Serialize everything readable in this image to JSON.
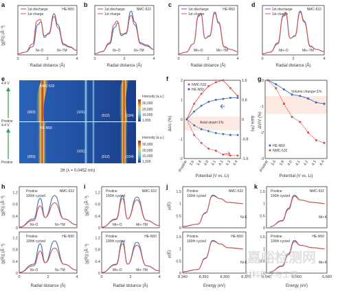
{
  "panels": {
    "a": {
      "letter": "a",
      "tag": "HE-N50",
      "leg1": "1st discharge",
      "leg2": "1st charge",
      "peak1": "Ni–O",
      "peak2": "Ni–TM",
      "xlabel": "Radial distance (Å)",
      "ylabel": "|χ(R)| (Å⁻³)"
    },
    "b": {
      "letter": "b",
      "tag": "NMC-532",
      "leg1": "1st discharge",
      "leg2": "1st charge",
      "peak1": "Ni–O",
      "peak2": "Ni–TM",
      "xlabel": "Radial distance (Å)"
    },
    "c": {
      "letter": "c",
      "tag": "HE-N50",
      "leg1": "1st discharge",
      "leg2": "1st charge",
      "peak1": "Mn–O",
      "peak2": "Mn–TM",
      "xlabel": "Radial distance (Å)"
    },
    "d": {
      "letter": "d",
      "tag": "NMC-532",
      "leg1": "1st discharge",
      "leg2": "1st charge",
      "peak1": "Mn–O",
      "peak2": "Mn–TM",
      "xlabel": "Radial distance (Å)"
    },
    "e": {
      "letter": "e",
      "top_tag": "NMC-532",
      "bot_tag": "HE-N50",
      "volt_top": "4.4 V",
      "volt_bot": "4.4 V",
      "pristine_top": "Pristine",
      "pristine_bot": "Pristine",
      "peaks": [
        "(003)",
        "(101)",
        "(012)",
        "(104)"
      ],
      "cb_title": "Intensity (a.u.)",
      "cb_ticks": [
        "30,000",
        "20,000",
        "10,000",
        "1,000"
      ],
      "xlabel": "2θ (λ = 0.0452 nm)"
    },
    "f": {
      "letter": "f",
      "leg1": "NMC-532",
      "leg2": "HE-N50",
      "ylabel_l": "Δc/c (%)",
      "ylabel_r": "Δa/a (%)",
      "note": "Axial strain≈1%",
      "xlabel": "Potential (V vs. Li)"
    },
    "g": {
      "letter": "g",
      "leg1": "HE-N50",
      "leg2": "NMC-532",
      "ylabel": "ΔV/V (%)",
      "note": "Volume change≈1%",
      "xlabel": "Potential (V vs. Li)"
    },
    "h": {
      "letter": "h",
      "tag_top": "NMC-532",
      "tag_bot": "HE-N50",
      "leg1": "Pristine",
      "leg2": "100th cycled",
      "peak1": "Ni–O",
      "peak2": "Ni–TM",
      "ylabel": "|χ(R)| (Å⁻³)",
      "xlabel": "Radial distance (Å)"
    },
    "i": {
      "letter": "i",
      "tag_top": "NMC-532",
      "tag_bot": "HE-N50",
      "leg1": "Pristine",
      "leg2": "100th cycled",
      "peak1": "Mn–O",
      "peak2": "Mn–TM",
      "ylabel": "|χ(R)| (Å⁻³)",
      "xlabel": "Radial distance (Å)"
    },
    "j": {
      "letter": "j",
      "tag_top": "NMC-532",
      "tag_bot": "HE-N50",
      "leg1": "Pristine",
      "leg2": "100th cycled",
      "edge": "Ni-K",
      "ylabel": "μ(E)",
      "xlabel": "Energy (eV)"
    },
    "k": {
      "letter": "k",
      "tag_top": "NMC-532",
      "tag_bot": "HE-N50",
      "leg1": "Pristine",
      "leg2": "100th cycled",
      "edge": "Mn-K",
      "xlabel": "Energy (eV)"
    }
  },
  "watermark": {
    "line1": "嘉峪检测网",
    "line2": "材料科学与工程"
  },
  "colors": {
    "blue": "#3a6fb0",
    "red": "#d9534f",
    "heat_bg": "#1a3f8c"
  },
  "chart_data": [
    {
      "panel": "a",
      "type": "line",
      "xlim": [
        0,
        4
      ],
      "x_ticks": [
        0,
        2,
        4
      ],
      "series": [
        {
          "name": "1st discharge",
          "values": [
            [
              0,
              0.02
            ],
            [
              0.5,
              0.05
            ],
            [
              1,
              0.15
            ],
            [
              1.35,
              0.55
            ],
            [
              1.55,
              0.6
            ],
            [
              1.8,
              0.32
            ],
            [
              2.1,
              0.4
            ],
            [
              2.45,
              0.75
            ],
            [
              2.7,
              0.55
            ],
            [
              3.1,
              0.2
            ],
            [
              3.5,
              0.15
            ],
            [
              4,
              0.08
            ]
          ]
        },
        {
          "name": "1st charge",
          "values": [
            [
              0,
              0.02
            ],
            [
              0.5,
              0.05
            ],
            [
              1,
              0.2
            ],
            [
              1.3,
              0.62
            ],
            [
              1.5,
              0.65
            ],
            [
              1.8,
              0.35
            ],
            [
              2.1,
              0.38
            ],
            [
              2.45,
              0.7
            ],
            [
              2.7,
              0.5
            ],
            [
              3.1,
              0.18
            ],
            [
              3.5,
              0.14
            ],
            [
              4,
              0.08
            ]
          ]
        }
      ]
    },
    {
      "panel": "b",
      "type": "line",
      "xlim": [
        0,
        4
      ],
      "x_ticks": [
        0,
        2,
        4
      ],
      "series": [
        {
          "name": "1st discharge",
          "values": [
            [
              0,
              0.02
            ],
            [
              0.5,
              0.06
            ],
            [
              1,
              0.2
            ],
            [
              1.35,
              0.5
            ],
            [
              1.55,
              0.58
            ],
            [
              1.8,
              0.35
            ],
            [
              2.1,
              0.4
            ],
            [
              2.45,
              0.8
            ],
            [
              2.7,
              0.6
            ],
            [
              3.1,
              0.22
            ],
            [
              3.5,
              0.18
            ],
            [
              4,
              0.1
            ]
          ]
        },
        {
          "name": "1st charge",
          "values": [
            [
              0,
              0.02
            ],
            [
              0.5,
              0.06
            ],
            [
              1,
              0.22
            ],
            [
              1.3,
              0.55
            ],
            [
              1.5,
              0.62
            ],
            [
              1.8,
              0.38
            ],
            [
              2.1,
              0.38
            ],
            [
              2.45,
              0.72
            ],
            [
              2.7,
              0.55
            ],
            [
              3.1,
              0.2
            ],
            [
              3.5,
              0.16
            ],
            [
              4,
              0.1
            ]
          ]
        }
      ]
    },
    {
      "panel": "c",
      "type": "line",
      "xlim": [
        0,
        4
      ],
      "x_ticks": [
        0,
        2,
        4
      ],
      "series": [
        {
          "name": "1st discharge",
          "values": [
            [
              0,
              0.02
            ],
            [
              0.5,
              0.05
            ],
            [
              1,
              0.2
            ],
            [
              1.35,
              0.7
            ],
            [
              1.5,
              0.75
            ],
            [
              1.8,
              0.3
            ],
            [
              2.1,
              0.35
            ],
            [
              2.45,
              0.78
            ],
            [
              2.7,
              0.6
            ],
            [
              3.1,
              0.15
            ],
            [
              3.5,
              0.1
            ],
            [
              4,
              0.06
            ]
          ]
        },
        {
          "name": "1st charge",
          "values": [
            [
              0,
              0.02
            ],
            [
              0.5,
              0.05
            ],
            [
              1,
              0.2
            ],
            [
              1.35,
              0.72
            ],
            [
              1.5,
              0.76
            ],
            [
              1.8,
              0.3
            ],
            [
              2.1,
              0.34
            ],
            [
              2.45,
              0.76
            ],
            [
              2.7,
              0.58
            ],
            [
              3.1,
              0.14
            ],
            [
              3.5,
              0.1
            ],
            [
              4,
              0.06
            ]
          ]
        }
      ]
    },
    {
      "panel": "d",
      "type": "line",
      "xlim": [
        0,
        4
      ],
      "x_ticks": [
        0,
        2,
        4
      ],
      "series": [
        {
          "name": "1st discharge",
          "values": [
            [
              0,
              0.02
            ],
            [
              0.5,
              0.05
            ],
            [
              1,
              0.2
            ],
            [
              1.35,
              0.7
            ],
            [
              1.5,
              0.76
            ],
            [
              1.8,
              0.3
            ],
            [
              2.1,
              0.35
            ],
            [
              2.45,
              0.8
            ],
            [
              2.7,
              0.62
            ],
            [
              3.1,
              0.16
            ],
            [
              3.5,
              0.1
            ],
            [
              4,
              0.06
            ]
          ]
        },
        {
          "name": "1st charge",
          "values": [
            [
              0,
              0.02
            ],
            [
              0.5,
              0.05
            ],
            [
              1,
              0.22
            ],
            [
              1.35,
              0.72
            ],
            [
              1.5,
              0.78
            ],
            [
              1.8,
              0.3
            ],
            [
              2.1,
              0.34
            ],
            [
              2.45,
              0.78
            ],
            [
              2.7,
              0.6
            ],
            [
              3.1,
              0.15
            ],
            [
              3.5,
              0.1
            ],
            [
              4,
              0.06
            ]
          ]
        }
      ]
    },
    {
      "panel": "f",
      "type": "line",
      "x_ticks": [
        "Pristine",
        "3.6",
        "3.8",
        "4.0",
        "4.1",
        "4.2",
        "4.3",
        "4.4"
      ],
      "ylim": [
        -2,
        2
      ],
      "y_ticks": [
        -2,
        -1,
        0,
        1,
        2
      ],
      "y2lim": [
        -1.6,
        1.6
      ],
      "y2_ticks": [
        -1.6,
        -0.8,
        0,
        0.8,
        1.6
      ],
      "series": [
        {
          "name": "NMC-532 Δc/c",
          "values": [
            0,
            0.8,
            1.3,
            1.7,
            1.9,
            2.0,
            1.6,
            1.2
          ]
        },
        {
          "name": "NMC-532 Δa/a",
          "values": [
            0,
            -0.8,
            -1.2,
            -1.5,
            -1.6,
            -1.8,
            -1.85,
            -1.85
          ]
        },
        {
          "name": "HE-N50 Δc/c",
          "values": [
            0,
            0.4,
            0.7,
            0.9,
            1.0,
            1.05,
            1.1,
            1.1
          ]
        },
        {
          "name": "HE-N50 Δa/a",
          "values": [
            0,
            -0.3,
            -0.5,
            -0.6,
            -0.7,
            -0.75,
            -0.8,
            -0.8
          ]
        }
      ]
    },
    {
      "panel": "g",
      "type": "line",
      "x_ticks": [
        "Pristine",
        "3.6",
        "3.8",
        "4.0",
        "4.1",
        "4.2",
        "4.3",
        "4.4"
      ],
      "ylim": [
        -3,
        0
      ],
      "y_ticks": [
        -3,
        -2,
        -1,
        0
      ],
      "series": [
        {
          "name": "HE-N50",
          "values": [
            0,
            -0.15,
            -0.35,
            -0.55,
            -0.6,
            -0.7,
            -0.85,
            -0.9
          ]
        },
        {
          "name": "NMC-532",
          "values": [
            0,
            -0.3,
            -0.9,
            -1.4,
            -1.6,
            -2.0,
            -2.3,
            -2.4
          ]
        }
      ]
    },
    {
      "panel": "h",
      "type": "line",
      "xlim": [
        0,
        4
      ],
      "x_ticks": [
        0,
        2,
        4
      ],
      "y_ticks": [
        0,
        0.4,
        0.8,
        1.2
      ],
      "series": [
        {
          "name": "Pristine",
          "values": [
            [
              0,
              0.02
            ],
            [
              1,
              0.3
            ],
            [
              1.45,
              1.0
            ],
            [
              1.8,
              0.35
            ],
            [
              2.45,
              1.1
            ],
            [
              3.1,
              0.3
            ],
            [
              4,
              0.1
            ]
          ]
        },
        {
          "name": "100th cycled",
          "values": [
            [
              0,
              0.02
            ],
            [
              1,
              0.25
            ],
            [
              1.45,
              0.75
            ],
            [
              1.8,
              0.35
            ],
            [
              2.45,
              0.85
            ],
            [
              3.1,
              0.3
            ],
            [
              4,
              0.1
            ]
          ]
        }
      ]
    },
    {
      "panel": "i",
      "type": "line",
      "xlim": [
        0,
        4
      ],
      "x_ticks": [
        0,
        2,
        4
      ],
      "y_ticks": [
        0,
        0.4,
        0.8,
        1.2
      ],
      "series": [
        {
          "name": "Pristine",
          "values": [
            [
              0,
              0.02
            ],
            [
              1,
              0.3
            ],
            [
              1.45,
              1.1
            ],
            [
              1.8,
              0.3
            ],
            [
              2.45,
              1.05
            ],
            [
              3.1,
              0.25
            ],
            [
              4,
              0.08
            ]
          ]
        },
        {
          "name": "100th cycled",
          "values": [
            [
              0,
              0.02
            ],
            [
              1,
              0.28
            ],
            [
              1.45,
              1.0
            ],
            [
              1.8,
              0.3
            ],
            [
              2.45,
              0.95
            ],
            [
              3.1,
              0.25
            ],
            [
              4,
              0.08
            ]
          ]
        }
      ]
    },
    {
      "panel": "j",
      "type": "line",
      "x_ticks": [
        "8,340",
        "8,350",
        "8,360",
        "8,370"
      ],
      "y_ticks": [
        0,
        0.5,
        1.0,
        1.5
      ],
      "series": [
        {
          "name": "Pristine",
          "values": [
            [
              8330,
              0.05
            ],
            [
              8340,
              0.15
            ],
            [
              8345,
              0.6
            ],
            [
              8350,
              1.35
            ],
            [
              8355,
              1.2
            ],
            [
              8360,
              1.05
            ],
            [
              8370,
              1.0
            ]
          ]
        },
        {
          "name": "100th cycled",
          "values": [
            [
              8330,
              0.05
            ],
            [
              8340,
              0.15
            ],
            [
              8345,
              0.62
            ],
            [
              8350,
              1.32
            ],
            [
              8355,
              1.2
            ],
            [
              8360,
              1.05
            ],
            [
              8370,
              1.0
            ]
          ]
        }
      ]
    },
    {
      "panel": "k",
      "type": "line",
      "x_ticks": [
        "6,540",
        "6,560",
        "6,580"
      ],
      "y_ticks": [
        0,
        0.5,
        1.0,
        1.5
      ],
      "series": [
        {
          "name": "Pristine",
          "values": [
            [
              6535,
              0.05
            ],
            [
              6545,
              0.3
            ],
            [
              6550,
              0.8
            ],
            [
              6555,
              1.35
            ],
            [
              6560,
              1.15
            ],
            [
              6570,
              1.05
            ],
            [
              6580,
              1.0
            ]
          ]
        },
        {
          "name": "100th cycled",
          "values": [
            [
              6535,
              0.05
            ],
            [
              6545,
              0.28
            ],
            [
              6550,
              0.75
            ],
            [
              6555,
              1.3
            ],
            [
              6560,
              1.15
            ],
            [
              6570,
              1.05
            ],
            [
              6580,
              1.0
            ]
          ]
        }
      ]
    }
  ]
}
